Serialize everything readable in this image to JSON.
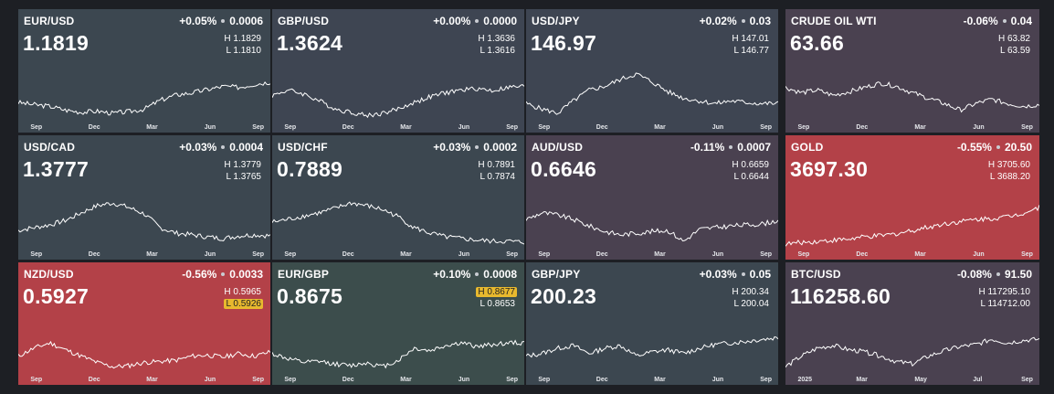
{
  "tiles": [
    {
      "symbol": "EUR/USD",
      "change_pct": "+0.05%",
      "change_abs": "0.0006",
      "price": "1.1819",
      "high": "H 1.1829",
      "low": "L 1.1810",
      "bg": "#3c4750",
      "highlight": "",
      "x_labels": [
        "Sep",
        "Dec",
        "Mar",
        "Jun",
        "Sep"
      ],
      "trend": [
        0.32,
        0.28,
        0.25,
        0.18,
        0.14,
        0.16,
        0.12,
        0.15,
        0.2,
        0.36,
        0.46,
        0.5,
        0.56,
        0.62,
        0.6,
        0.66,
        0.7
      ]
    },
    {
      "symbol": "GBP/USD",
      "change_pct": "+0.00%",
      "change_abs": "0.0000",
      "price": "1.3624",
      "high": "H 1.3636",
      "low": "L 1.3616",
      "bg": "#3e4552",
      "highlight": "",
      "x_labels": [
        "Sep",
        "Dec",
        "Mar",
        "Jun",
        "Sep"
      ],
      "trend": [
        0.45,
        0.55,
        0.48,
        0.35,
        0.2,
        0.14,
        0.08,
        0.12,
        0.2,
        0.32,
        0.42,
        0.5,
        0.55,
        0.58,
        0.54,
        0.6,
        0.62
      ]
    },
    {
      "symbol": "USD/JPY",
      "change_pct": "+0.02%",
      "change_abs": "0.03",
      "price": "146.97",
      "high": "H 147.01",
      "low": "L 146.77",
      "bg": "#3e4552",
      "highlight": "",
      "x_labels": [
        "Sep",
        "Dec",
        "Mar",
        "Jun",
        "Sep"
      ],
      "trend": [
        0.3,
        0.2,
        0.12,
        0.35,
        0.55,
        0.62,
        0.75,
        0.85,
        0.7,
        0.52,
        0.4,
        0.35,
        0.3,
        0.35,
        0.32,
        0.3,
        0.3
      ]
    },
    {
      "symbol": "CRUDE OIL WTI",
      "change_pct": "-0.06%",
      "change_abs": "0.04",
      "price": "63.66",
      "high": "H 63.82",
      "low": "L 63.59",
      "bg": "#4a4150",
      "highlight": "",
      "x_labels": [
        "Sep",
        "Dec",
        "Mar",
        "Jun",
        "Sep"
      ],
      "trend": [
        0.6,
        0.5,
        0.55,
        0.45,
        0.52,
        0.6,
        0.68,
        0.62,
        0.5,
        0.4,
        0.3,
        0.18,
        0.3,
        0.38,
        0.3,
        0.25,
        0.28
      ]
    },
    {
      "symbol": "USD/CAD",
      "change_pct": "+0.03%",
      "change_abs": "0.0004",
      "price": "1.3777",
      "high": "H 1.3779",
      "low": "L 1.3765",
      "bg": "#3c4750",
      "highlight": "",
      "x_labels": [
        "Sep",
        "Dec",
        "Mar",
        "Jun",
        "Sep"
      ],
      "trend": [
        0.3,
        0.35,
        0.4,
        0.48,
        0.62,
        0.75,
        0.8,
        0.72,
        0.6,
        0.35,
        0.25,
        0.22,
        0.18,
        0.15,
        0.2,
        0.22,
        0.2
      ]
    },
    {
      "symbol": "USD/CHF",
      "change_pct": "+0.03%",
      "change_abs": "0.0002",
      "price": "0.7889",
      "high": "H 0.7891",
      "low": "L 0.7874",
      "bg": "#3c4750",
      "highlight": "",
      "x_labels": [
        "Sep",
        "Dec",
        "Mar",
        "Jun",
        "Sep"
      ],
      "trend": [
        0.45,
        0.5,
        0.56,
        0.62,
        0.7,
        0.8,
        0.75,
        0.68,
        0.55,
        0.35,
        0.25,
        0.18,
        0.15,
        0.12,
        0.1,
        0.1,
        0.08
      ]
    },
    {
      "symbol": "AUD/USD",
      "change_pct": "-0.11%",
      "change_abs": "0.0007",
      "price": "0.6646",
      "high": "H 0.6659",
      "low": "L 0.6644",
      "bg": "#4a4150",
      "highlight": "",
      "x_labels": [
        "Sep",
        "Dec",
        "Mar",
        "Jun",
        "Sep"
      ],
      "trend": [
        0.5,
        0.62,
        0.58,
        0.5,
        0.38,
        0.28,
        0.22,
        0.25,
        0.28,
        0.3,
        0.1,
        0.32,
        0.35,
        0.38,
        0.4,
        0.42,
        0.48
      ]
    },
    {
      "symbol": "GOLD",
      "change_pct": "-0.55%",
      "change_abs": "20.50",
      "price": "3697.30",
      "high": "H 3705.60",
      "low": "L 3688.20",
      "bg": "#b34148",
      "highlight": "",
      "x_labels": [
        "Sep",
        "Dec",
        "Mar",
        "Jun",
        "Sep"
      ],
      "trend": [
        0.05,
        0.08,
        0.1,
        0.12,
        0.14,
        0.18,
        0.2,
        0.24,
        0.3,
        0.36,
        0.42,
        0.46,
        0.5,
        0.52,
        0.55,
        0.62,
        0.72
      ]
    },
    {
      "symbol": "NZD/USD",
      "change_pct": "-0.56%",
      "change_abs": "0.0033",
      "price": "0.5927",
      "high": "H 0.5965",
      "low": "L 0.5926",
      "bg": "#b34148",
      "highlight": "low",
      "x_labels": [
        "Sep",
        "Dec",
        "Mar",
        "Jun",
        "Sep"
      ],
      "trend": [
        0.3,
        0.45,
        0.55,
        0.42,
        0.3,
        0.18,
        0.1,
        0.12,
        0.18,
        0.2,
        0.22,
        0.3,
        0.32,
        0.28,
        0.35,
        0.3,
        0.38
      ]
    },
    {
      "symbol": "EUR/GBP",
      "change_pct": "+0.10%",
      "change_abs": "0.0008",
      "price": "0.8675",
      "high": "H 0.8677",
      "low": "L 0.8653",
      "bg": "#3c4d4c",
      "highlight": "high",
      "x_labels": [
        "Sep",
        "Dec",
        "Mar",
        "Jun",
        "Sep"
      ],
      "trend": [
        0.35,
        0.25,
        0.18,
        0.2,
        0.15,
        0.12,
        0.18,
        0.1,
        0.22,
        0.45,
        0.4,
        0.5,
        0.55,
        0.48,
        0.52,
        0.55,
        0.55
      ]
    },
    {
      "symbol": "GBP/JPY",
      "change_pct": "+0.03%",
      "change_abs": "0.05",
      "price": "200.23",
      "high": "H 200.34",
      "low": "L 200.04",
      "bg": "#3c4750",
      "highlight": "",
      "x_labels": [
        "Sep",
        "Dec",
        "Mar",
        "Jun",
        "Sep"
      ],
      "trend": [
        0.3,
        0.35,
        0.45,
        0.5,
        0.35,
        0.45,
        0.5,
        0.3,
        0.38,
        0.42,
        0.35,
        0.45,
        0.52,
        0.55,
        0.58,
        0.62,
        0.65
      ]
    },
    {
      "symbol": "BTC/USD",
      "change_pct": "-0.08%",
      "change_abs": "91.50",
      "price": "116258.60",
      "high": "H 117295.10",
      "low": "L 114712.00",
      "bg": "#4a4150",
      "highlight": "",
      "x_labels": [
        "2025",
        "Mar",
        "May",
        "Jul",
        "Sep"
      ],
      "trend": [
        0.1,
        0.3,
        0.45,
        0.5,
        0.42,
        0.38,
        0.3,
        0.2,
        0.15,
        0.3,
        0.4,
        0.48,
        0.52,
        0.62,
        0.55,
        0.6,
        0.62
      ]
    }
  ]
}
